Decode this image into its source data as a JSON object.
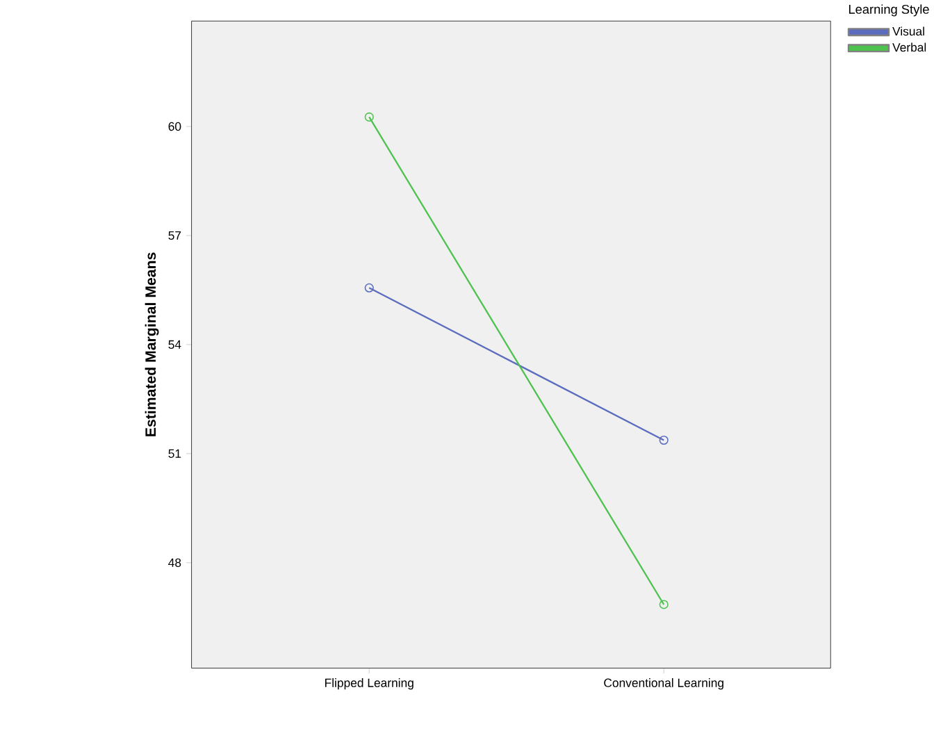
{
  "chart_data": {
    "type": "line",
    "ylabel": "Estimated Marginal Means",
    "legend_title": "Learning Style",
    "categories": [
      "Flipped Learning",
      "Conventional Learning"
    ],
    "series": [
      {
        "name": "Visual",
        "color": "#5b6cbf",
        "values": [
          55.56,
          51.37
        ]
      },
      {
        "name": "Verbal",
        "color": "#4ec24e",
        "values": [
          60.26,
          46.85
        ]
      }
    ],
    "ylim": [
      45.1,
      62.9
    ],
    "yticks": [
      48,
      51,
      54,
      57,
      60
    ],
    "marker": "circle",
    "legend": "top right",
    "grid": false
  }
}
